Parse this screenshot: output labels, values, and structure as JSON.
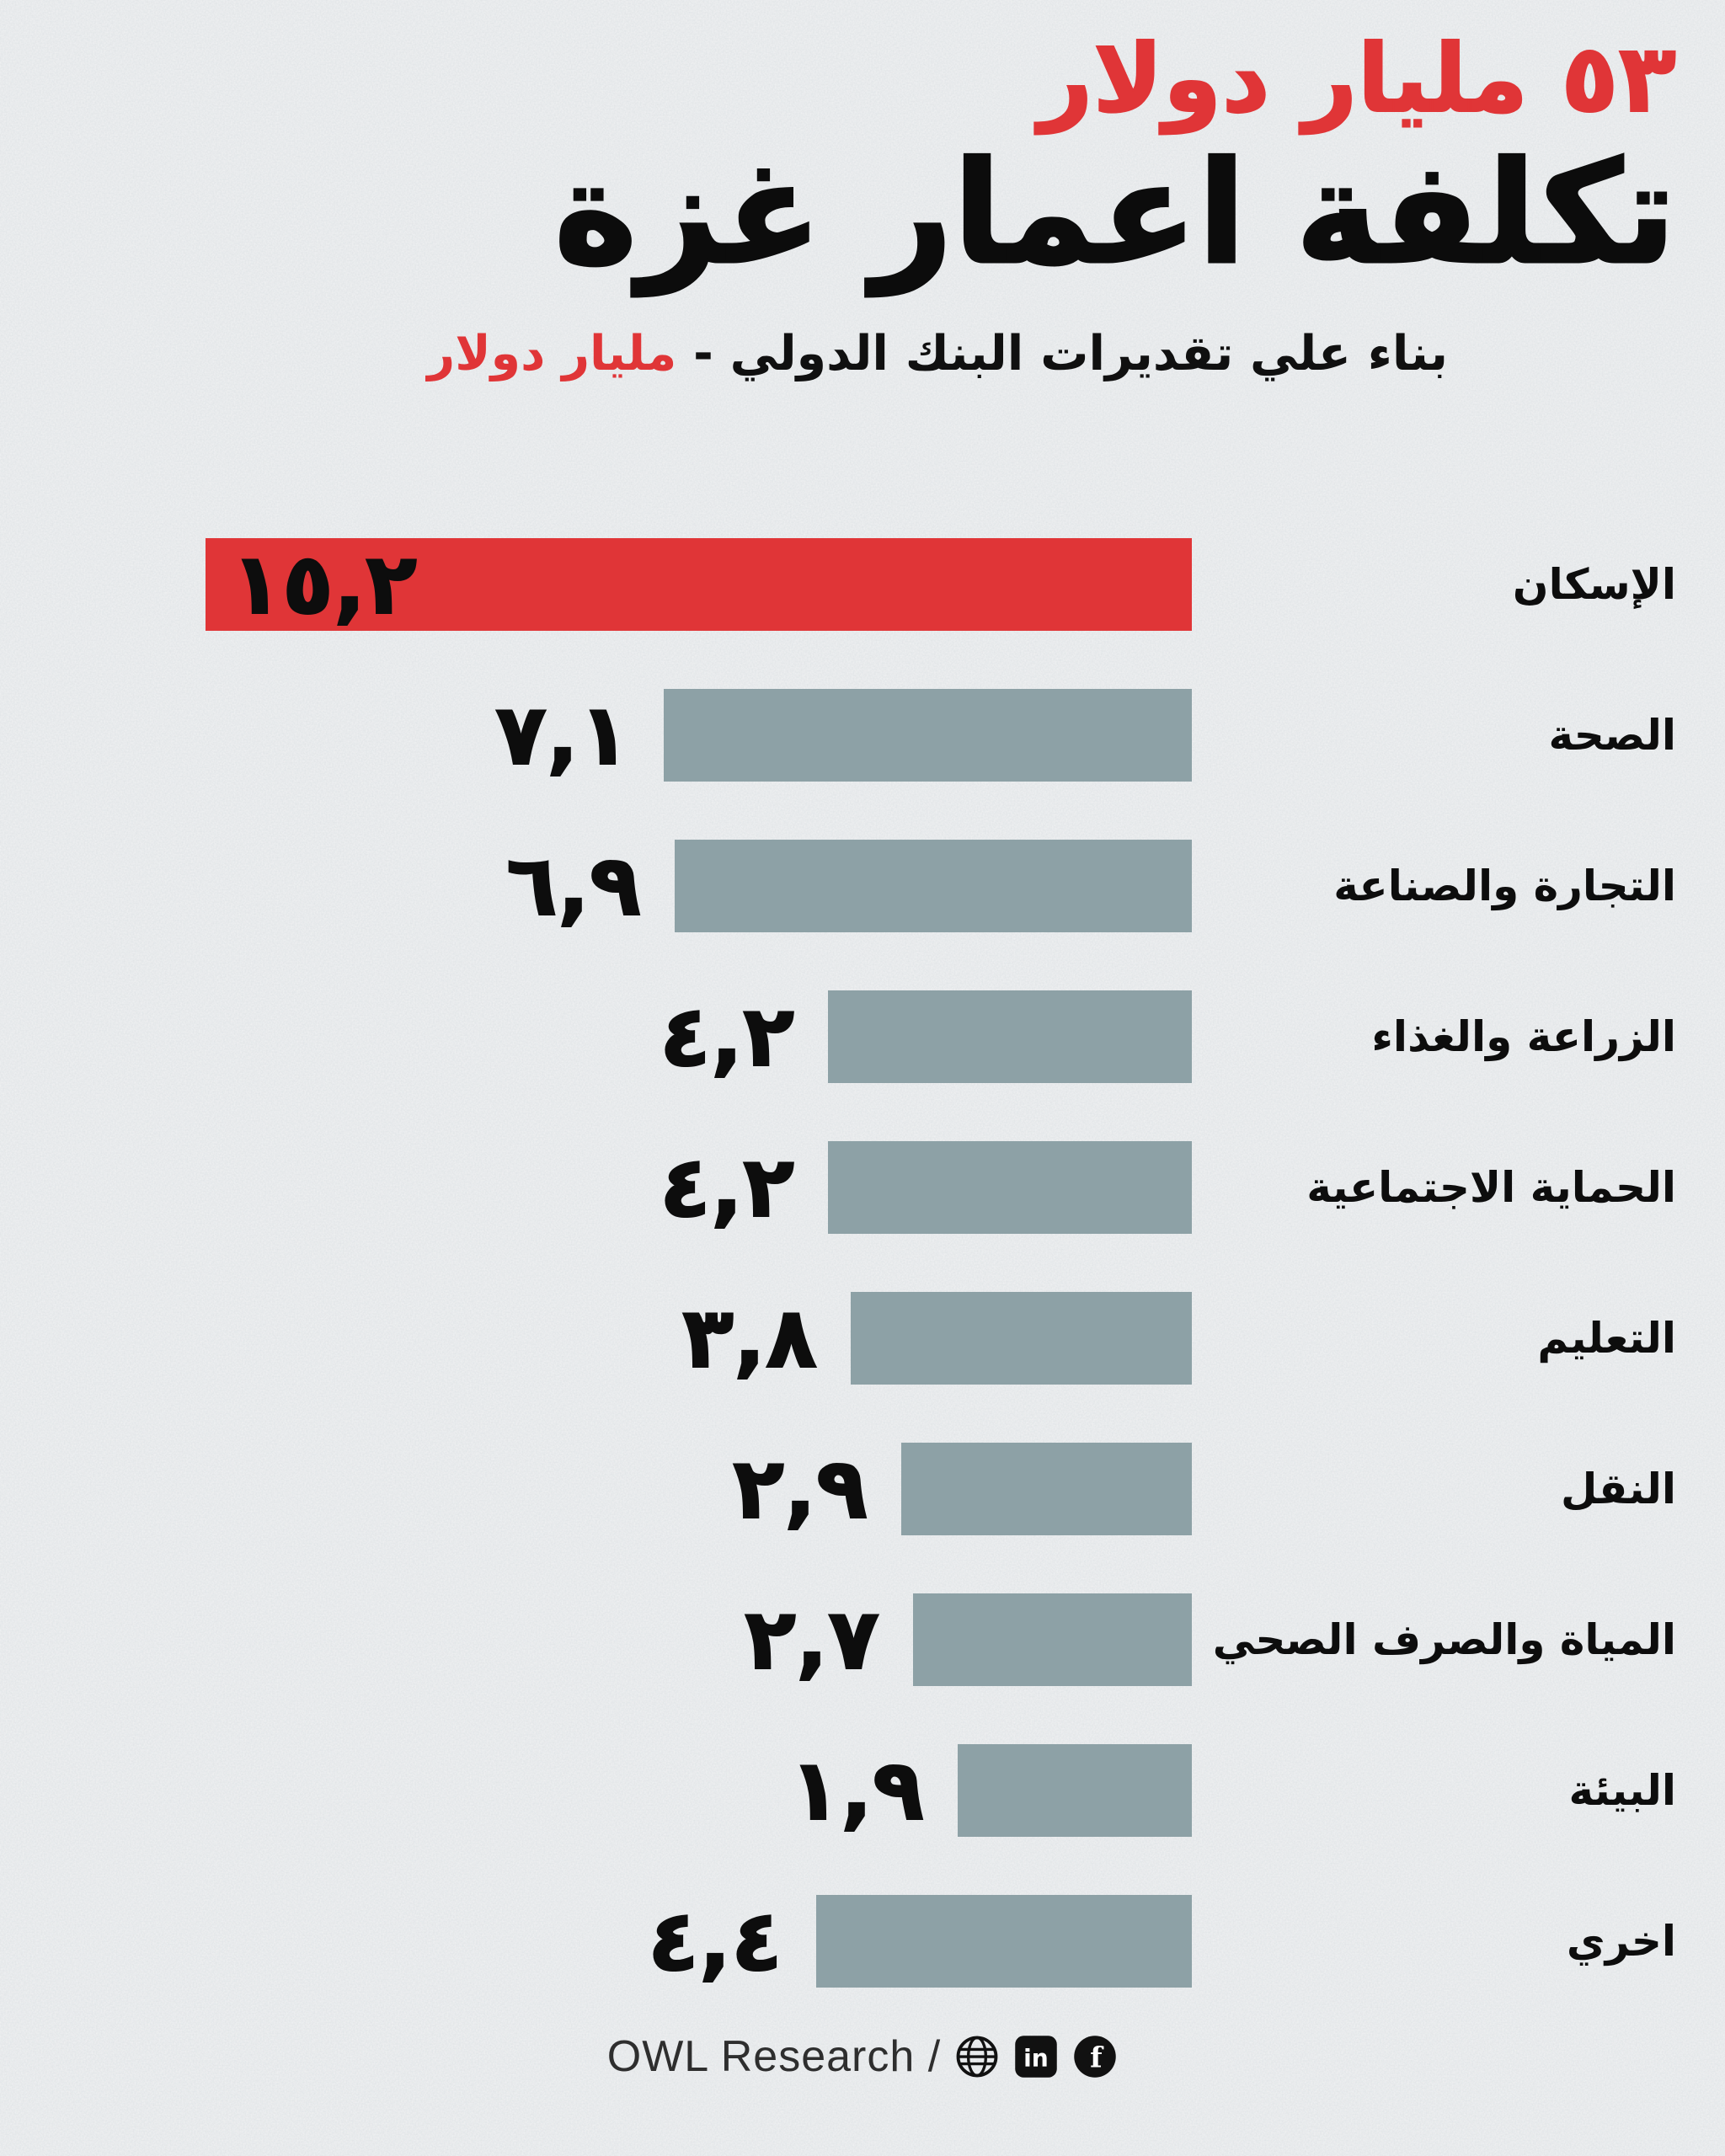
{
  "page": {
    "background": "#f1f2f3",
    "accent_color": "#e03537",
    "bar_color": "#8da1a6",
    "text_color": "#0d0d0d"
  },
  "header": {
    "amount": "٥٣ مليار دولار",
    "title": "تكلفة اعمار غزة",
    "subtitle_plain": "بناء علي تقديرات البنك الدولي - ",
    "subtitle_accent": "مليار دولار"
  },
  "chart_data": {
    "type": "bar",
    "orientation": "horizontal",
    "direction": "rtl",
    "headline": "٥٣ مليار دولار",
    "title": "تكلفة اعمار غزة",
    "subtitle": "بناء علي تقديرات البنك الدولي - مليار دولار",
    "unit": "مليار دولار",
    "total_shown": 53,
    "categories": [
      "الإسكان",
      "الصحة",
      "التجارة والصناعة",
      "الزراعة والغذاء",
      "الحماية الاجتماعية",
      "التعليم",
      "النقل",
      "المياة والصرف الصحي",
      "البيئة",
      "اخري"
    ],
    "values": [
      15.2,
      7.1,
      6.9,
      4.2,
      4.2,
      3.8,
      2.9,
      2.7,
      1.9,
      4.4
    ],
    "value_labels": [
      "١٥,٢",
      "٧,١",
      "٦,٩",
      "٤,٢",
      "٤,٢",
      "٣,٨",
      "٢,٩",
      "٢,٧",
      "١,٩",
      "٤,٤"
    ],
    "highlight_index": 0,
    "highlight_color": "#e03537",
    "bar_color": "#8da1a6",
    "xlim": [
      0,
      15.2
    ],
    "grid": false,
    "legend": false
  },
  "footer": {
    "credit": "OWL Research /",
    "icons": [
      "globe-icon",
      "linkedin-icon",
      "facebook-icon"
    ],
    "linkedin_glyph": "in",
    "facebook_glyph": "f"
  }
}
